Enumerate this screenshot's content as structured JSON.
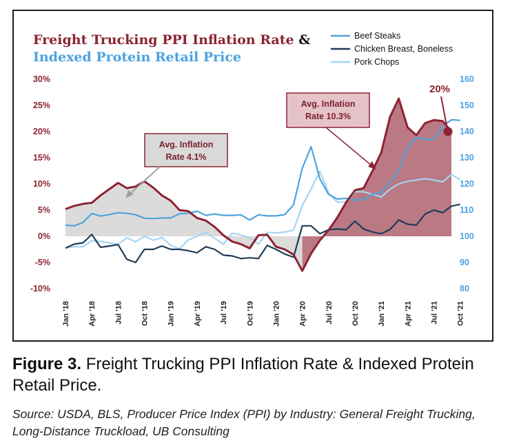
{
  "chart_data": {
    "type": "area",
    "title_line1": "Freight Trucking PPI Inflation Rate",
    "title_amp": "&",
    "title_line2": "Indexed Protein Retail Price",
    "colors": {
      "title_dark_red": "#8b2332",
      "title_blue": "#4aa3e0",
      "ppi_line": "#8b2332",
      "ppi_fill_low": "#d9d9d9",
      "ppi_fill_high": "#b36a76",
      "beef": "#4ea3dc",
      "chicken": "#1f3b57",
      "pork": "#a6d4f2",
      "left_axis": "#8b2332",
      "right_axis": "#4aa3e0"
    },
    "left_axis": {
      "ylim": [
        -10,
        30
      ],
      "ticks": [
        "30%",
        "25%",
        "20%",
        "15%",
        "10%",
        "5%",
        "0%",
        "-5%",
        "-10%"
      ]
    },
    "right_axis": {
      "ylim": [
        80,
        160
      ],
      "ticks": [
        "160",
        "150",
        "140",
        "130",
        "120",
        "110",
        "100",
        "90",
        "80"
      ]
    },
    "x_ticks": [
      "Jan '18",
      "Apr '18",
      "Jul '18",
      "Oct '18",
      "Jan '19",
      "Apr '19",
      "Jul '19",
      "Oct '19",
      "Jan '20",
      "Apr '20",
      "Jul '20",
      "Oct '20",
      "Jan '21",
      "Apr '21",
      "Jul '21",
      "Oct '21"
    ],
    "x_start": "2018-01",
    "ppi_series": {
      "name": "",
      "axis": "left",
      "values": [
        5.2,
        5.8,
        6.2,
        6.4,
        7.8,
        9.0,
        10.2,
        9.2,
        9.5,
        10.5,
        9.3,
        7.8,
        6.8,
        5.0,
        4.8,
        3.5,
        3.0,
        1.8,
        0.2,
        -1.0,
        -1.5,
        -2.3,
        0.2,
        0.3,
        -2.0,
        -2.5,
        -3.5,
        -6.6,
        -3.3,
        -0.8,
        1.2,
        3.6,
        6.5,
        8.8,
        9.2,
        12.5,
        16.0,
        22.8,
        26.3,
        20.8,
        19.3,
        21.6,
        22.2,
        22.0,
        20.0
      ]
    },
    "series": [
      {
        "name": "Beef Steaks",
        "axis": "right",
        "values": [
          104.3,
          104.0,
          105.3,
          108.7,
          107.7,
          108.3,
          109.0,
          108.8,
          108.2,
          106.9,
          106.8,
          107.0,
          107.0,
          108.6,
          108.8,
          109.6,
          108.0,
          108.5,
          108.0,
          108.0,
          108.2,
          106.2,
          108.2,
          107.8,
          107.8,
          108.3,
          112.0,
          126.0,
          134.2,
          122.0,
          116.0,
          114.2,
          114.5,
          113.8,
          114.0,
          116.0,
          116.7,
          120.7,
          125.0,
          134.0,
          137.8,
          137.0,
          137.0,
          142.0,
          144.5,
          144.3
        ]
      },
      {
        "name": "Chicken Breast, Boneless",
        "axis": "right",
        "values": [
          95.5,
          97.0,
          97.5,
          100.7,
          95.8,
          96.3,
          96.8,
          91.2,
          90.0,
          95.0,
          95.0,
          96.3,
          95.0,
          95.0,
          94.5,
          93.7,
          96.0,
          95.0,
          92.8,
          92.5,
          91.5,
          91.8,
          91.5,
          96.5,
          95.0,
          93.2,
          92.0,
          104.0,
          104.0,
          101.0,
          102.5,
          102.8,
          102.5,
          105.8,
          102.8,
          101.6,
          101.0,
          102.6,
          106.2,
          104.6,
          104.3,
          108.5,
          110.0,
          109.0,
          111.5,
          112.2
        ]
      },
      {
        "name": "Pork Chops",
        "axis": "right",
        "values": [
          95.5,
          96.0,
          96.0,
          98.3,
          98.0,
          97.5,
          97.0,
          99.4,
          97.9,
          100.0,
          98.5,
          99.5,
          96.5,
          95.2,
          98.6,
          100.0,
          101.5,
          99.2,
          97.0,
          101.2,
          100.5,
          99.5,
          97.0,
          101.5,
          101.3,
          101.6,
          102.3,
          111.8,
          118.0,
          124.8,
          116.5,
          113.0,
          113.2,
          117.0,
          117.0,
          116.0,
          115.0,
          118.0,
          120.0,
          121.0,
          121.5,
          122.0,
          121.5,
          120.8,
          123.6,
          121.6
        ]
      }
    ],
    "annotations": [
      {
        "text_line1": "Avg. Inflation",
        "text_line2": "Rate 4.1%"
      },
      {
        "text_line1": "Avg. Inflation",
        "text_line2": "Rate 10.3%"
      },
      {
        "text": "20%"
      }
    ]
  },
  "caption": {
    "label": "Figure 3.",
    "text": " Freight Trucking PPI Inflation Rate & Indexed Protein Retail Price."
  },
  "source": "Source: USDA, BLS, Producer Price Index (PPI) by Industry: General Freight Trucking, Long-Distance Truckload, UB Consulting"
}
